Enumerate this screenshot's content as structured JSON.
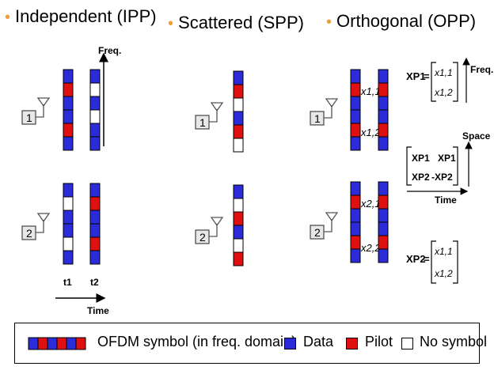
{
  "titles": {
    "ipp": "Independent (IPP)",
    "spp": "Scattered (SPP)",
    "opp": "Orthogonal (OPP)"
  },
  "axes": {
    "freq": "Freq.",
    "time": "Time",
    "space": "Space",
    "t1": "t1",
    "t2": "t2"
  },
  "antennas": [
    "1",
    "2"
  ],
  "colors": {
    "data": "#2b2bd9",
    "pilot": "#e01010",
    "empty": "#ffffff",
    "bullet": "#f0a030"
  },
  "columns": {
    "ipp_a1_t1": [
      "D",
      "P",
      "D",
      "D",
      "P",
      "D"
    ],
    "ipp_a1_t2": [
      "D",
      "N",
      "D",
      "N",
      "D",
      "D"
    ],
    "ipp_a2_t1": [
      "D",
      "N",
      "D",
      "D",
      "N",
      "D"
    ],
    "ipp_a2_t2": [
      "D",
      "P",
      "D",
      "D",
      "P",
      "D"
    ],
    "spp_a1": [
      "D",
      "P",
      "N",
      "D",
      "P",
      "N"
    ],
    "spp_a2": [
      "D",
      "N",
      "P",
      "D",
      "N",
      "P"
    ],
    "opp_a1_t1": [
      "D",
      "P",
      "D",
      "D",
      "P",
      "D"
    ],
    "opp_a1_t2": [
      "D",
      "P",
      "D",
      "D",
      "P",
      "D"
    ],
    "opp_a2_t1": [
      "D",
      "P",
      "D",
      "D",
      "P",
      "D"
    ],
    "opp_a2_t2": [
      "D",
      "P",
      "D",
      "D",
      "P",
      "D"
    ]
  },
  "opp_labels": {
    "a1_top": "x1,1",
    "a1_bot": "x1,2",
    "a2_top": "x2,1",
    "a2_bot": "x2,2"
  },
  "matrices": {
    "xp1_label": "XP1",
    "xp1_entries": [
      "x1,1",
      "x1,2"
    ],
    "xp2_label": "XP2",
    "xp2_entries": [
      "x1,1",
      "x1,2"
    ],
    "stbc": [
      [
        "XP1",
        "XP1"
      ],
      [
        "XP2",
        "-XP2"
      ]
    ]
  },
  "legend": {
    "symbol_pattern": [
      "D",
      "P",
      "D",
      "P",
      "D",
      "P"
    ],
    "ofdm_label": "OFDM symbol (in freq. domain)",
    "data_label": "Data",
    "pilot_label": "Pilot",
    "none_label": "No symbol"
  }
}
